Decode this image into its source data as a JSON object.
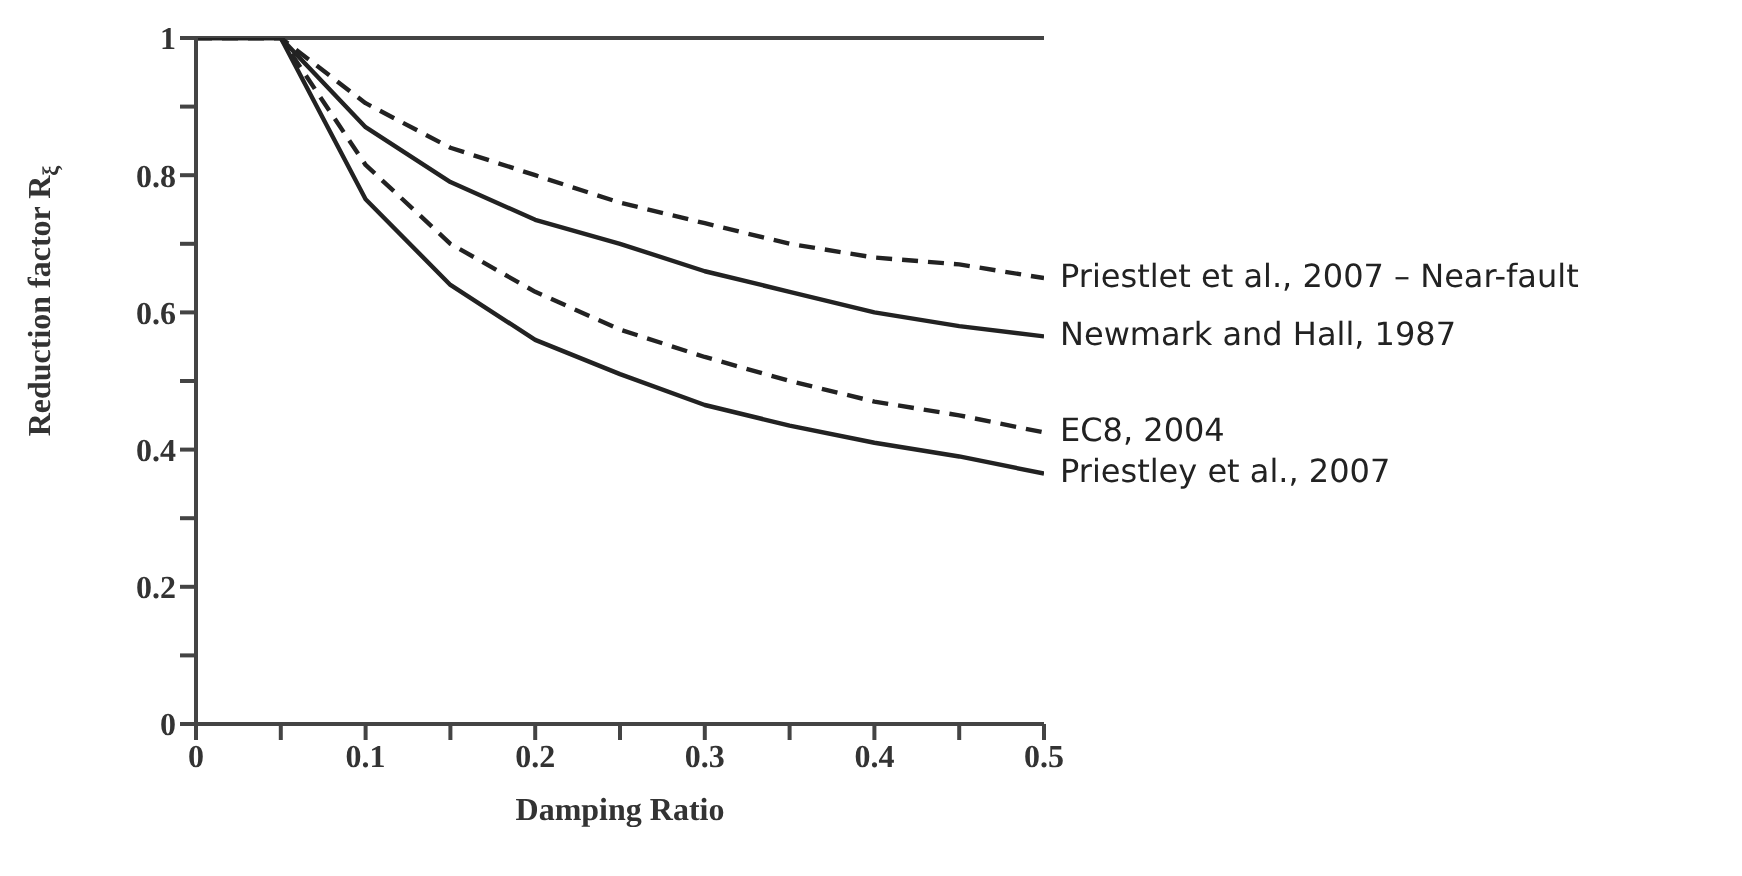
{
  "chart_data": {
    "type": "line",
    "xlabel": "Damping Ratio",
    "ylabel": "Reduction factor R$_{ξ}$",
    "x": [
      0,
      0.05,
      0.1,
      0.15,
      0.2,
      0.25,
      0.3,
      0.35,
      0.4,
      0.45,
      0.5
    ],
    "series": [
      {
        "name": "Priestlet et al., 2007 – Near-fault",
        "color": "#222222",
        "line_style": "dashed",
        "values": [
          1,
          1,
          0.905,
          0.84,
          0.8,
          0.76,
          0.73,
          0.7,
          0.68,
          0.67,
          0.65
        ]
      },
      {
        "name": "Newmark and Hall, 1987",
        "color": "#222222",
        "line_style": "solid",
        "values": [
          1,
          1,
          0.87,
          0.79,
          0.735,
          0.7,
          0.66,
          0.63,
          0.6,
          0.58,
          0.565
        ]
      },
      {
        "name": "EC8, 2004",
        "color": "#222222",
        "line_style": "dashed",
        "values": [
          1,
          1,
          0.815,
          0.7,
          0.63,
          0.575,
          0.535,
          0.5,
          0.47,
          0.45,
          0.425
        ]
      },
      {
        "name": "Priestley et al., 2007",
        "color": "#222222",
        "line_style": "solid",
        "values": [
          1,
          1,
          0.765,
          0.64,
          0.56,
          0.51,
          0.465,
          0.435,
          0.41,
          0.39,
          0.365
        ]
      }
    ],
    "xlim": [
      0,
      0.5
    ],
    "ylim": [
      0,
      1
    ],
    "xticks": [
      0,
      {
        "value": 0.05,
        "label": null
      },
      0.1,
      {
        "value": 0.15,
        "label": null
      },
      0.2,
      {
        "value": 0.25,
        "label": null
      },
      0.3,
      {
        "value": 0.35,
        "label": null
      },
      0.4,
      {
        "value": 0.45,
        "label": null
      },
      0.5
    ],
    "yticks": [
      0,
      {
        "value": 0.1,
        "label": null
      },
      0.2,
      {
        "value": 0.3,
        "label": null
      },
      0.4,
      {
        "value": 0.5,
        "label": null
      },
      0.6,
      {
        "value": 0.7,
        "label": null
      },
      0.8,
      {
        "value": 0.9,
        "label": null
      },
      1
    ],
    "ref_lines": [
      {
        "axis": "y",
        "value": 1,
        "color": "#444444"
      }
    ],
    "grid": false,
    "legend": false,
    "marker": "none"
  }
}
